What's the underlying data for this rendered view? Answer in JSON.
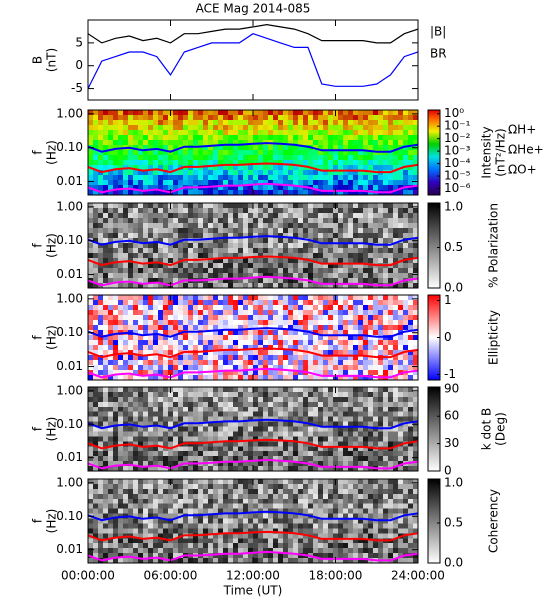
{
  "chart_data": [
    {
      "type": "line",
      "title": "ACE Mag 2014-085",
      "ylabel": [
        "B",
        "(nT)"
      ],
      "ylim": [
        -7.5,
        10
      ],
      "yticks": [
        -5,
        0,
        5
      ],
      "x": [
        0,
        1,
        2,
        3,
        4,
        5,
        6,
        7,
        8,
        9,
        10,
        11,
        12,
        13,
        14,
        15,
        16,
        17,
        18,
        19,
        20,
        21,
        22,
        23,
        24
      ],
      "series": [
        {
          "name": "|B|",
          "color": "#000000",
          "values": [
            7,
            5,
            6,
            6.5,
            5.5,
            6,
            5,
            7,
            7,
            7.5,
            8,
            8,
            8.5,
            9,
            8.5,
            8,
            7,
            5.5,
            5.5,
            5.5,
            5.5,
            5,
            5,
            7,
            8
          ]
        },
        {
          "name": "BR",
          "color": "#0000ff",
          "values": [
            -5,
            1,
            2,
            3,
            3,
            2,
            -2,
            3,
            4,
            5,
            5,
            5,
            7,
            6,
            5,
            4,
            4,
            -4,
            -4.5,
            -4.5,
            -4.5,
            -4,
            -2,
            2,
            3
          ]
        }
      ]
    },
    {
      "type": "spectrogram",
      "ylabel": [
        "f",
        "(Hz)"
      ],
      "log_y": true,
      "ylim": [
        0.004,
        1.3
      ],
      "yticks": [
        {
          "value": 1,
          "label": "1.00"
        },
        {
          "value": 0.1,
          "label": "0.10"
        },
        {
          "value": 0.01,
          "label": "0.01"
        }
      ],
      "colormap": "rainbow",
      "clabel": [
        "Intensity",
        "(nT²/Hz)"
      ],
      "clim": [
        3e-07,
        2
      ],
      "log_c": true,
      "cticks": [
        {
          "value": 1,
          "label": "10⁰"
        },
        {
          "value": 0.1,
          "label": "10⁻¹"
        },
        {
          "value": 0.01,
          "label": "10⁻²"
        },
        {
          "value": 0.001,
          "label": "10⁻³"
        },
        {
          "value": 0.0001,
          "label": "10⁻⁴"
        },
        {
          "value": 1e-05,
          "label": "10⁻⁵"
        },
        {
          "value": 1e-06,
          "label": "10⁻⁶"
        }
      ],
      "x": [
        0,
        1,
        2,
        3,
        4,
        5,
        6,
        7,
        8,
        9,
        10,
        11,
        12,
        13,
        14,
        15,
        16,
        17,
        18,
        19,
        20,
        21,
        22,
        23,
        24
      ],
      "series": [
        {
          "name": "ΩH+",
          "color": "#0000ff",
          "values": [
            0.107,
            0.076,
            0.092,
            0.099,
            0.084,
            0.092,
            0.076,
            0.107,
            0.107,
            0.114,
            0.122,
            0.122,
            0.13,
            0.137,
            0.13,
            0.122,
            0.107,
            0.084,
            0.084,
            0.084,
            0.084,
            0.076,
            0.076,
            0.107,
            0.122
          ]
        },
        {
          "name": "ΩHe+",
          "color": "#ff0000",
          "values": [
            0.027,
            0.019,
            0.023,
            0.025,
            0.021,
            0.023,
            0.019,
            0.027,
            0.027,
            0.029,
            0.031,
            0.031,
            0.033,
            0.034,
            0.033,
            0.031,
            0.027,
            0.021,
            0.021,
            0.021,
            0.021,
            0.019,
            0.019,
            0.027,
            0.031
          ]
        },
        {
          "name": "ΩO+",
          "color": "#ff00ff",
          "values": [
            0.0067,
            0.0048,
            0.0058,
            0.0062,
            0.0053,
            0.0058,
            0.0048,
            0.0067,
            0.0067,
            0.0071,
            0.0076,
            0.0076,
            0.0081,
            0.0086,
            0.0081,
            0.0076,
            0.0067,
            0.0053,
            0.0053,
            0.0053,
            0.0053,
            0.0048,
            0.0048,
            0.0067,
            0.0076
          ]
        }
      ]
    },
    {
      "type": "spectrogram",
      "ylabel": [
        "f",
        "(Hz)"
      ],
      "log_y": true,
      "ylim": [
        0.004,
        1.3
      ],
      "yticks": [
        {
          "value": 1,
          "label": "1.00"
        },
        {
          "value": 0.1,
          "label": "0.10"
        },
        {
          "value": 0.01,
          "label": "0.01"
        }
      ],
      "colormap": "gray",
      "clabel": [
        "% Polarization"
      ],
      "clim": [
        0,
        1.05
      ],
      "cticks": [
        {
          "value": 0,
          "label": "0.0"
        },
        {
          "value": 0.5,
          "label": "0.5"
        },
        {
          "value": 1,
          "label": "1.0"
        }
      ]
    },
    {
      "type": "spectrogram",
      "ylabel": [
        "f",
        "(Hz)"
      ],
      "log_y": true,
      "ylim": [
        0.004,
        1.3
      ],
      "yticks": [
        {
          "value": 1,
          "label": "1.00"
        },
        {
          "value": 0.1,
          "label": "0.10"
        },
        {
          "value": 0.01,
          "label": "0.01"
        }
      ],
      "colormap": "bwr",
      "clabel": [
        "Ellipticity"
      ],
      "clim": [
        -1.15,
        1.15
      ],
      "cticks": [
        -1,
        0,
        1
      ]
    },
    {
      "type": "spectrogram",
      "ylabel": [
        "f",
        "(Hz)"
      ],
      "log_y": true,
      "ylim": [
        0.004,
        1.3
      ],
      "yticks": [
        {
          "value": 1,
          "label": "1.00"
        },
        {
          "value": 0.1,
          "label": "0.10"
        },
        {
          "value": 0.01,
          "label": "0.01"
        }
      ],
      "colormap": "gray",
      "clabel": [
        "k dot B",
        "(Deg)"
      ],
      "clim": [
        0,
        92
      ],
      "cticks": [
        0,
        30,
        60,
        90
      ]
    },
    {
      "type": "spectrogram",
      "ylabel": [
        "f",
        "(Hz)"
      ],
      "log_y": true,
      "ylim": [
        0.004,
        1.3
      ],
      "yticks": [
        {
          "value": 1,
          "label": "1.00"
        },
        {
          "value": 0.1,
          "label": "0.10"
        },
        {
          "value": 0.01,
          "label": "0.01"
        }
      ],
      "colormap": "gray",
      "clabel": [
        "Coherency"
      ],
      "clim": [
        0,
        1.05
      ],
      "cticks": [
        {
          "value": 0,
          "label": "0.0"
        },
        {
          "value": 0.5,
          "label": "0.5"
        },
        {
          "value": 1,
          "label": "1.0"
        }
      ],
      "xlim": [
        0,
        24
      ],
      "xlabel": "Time (UT)",
      "xticks": [
        {
          "value": 0,
          "label": "00:00:00"
        },
        {
          "value": 6,
          "label": "06:00:00"
        },
        {
          "value": 12,
          "label": "12:00:00"
        },
        {
          "value": 18,
          "label": "18:00:00"
        },
        {
          "value": 24,
          "label": "24:00:00"
        }
      ]
    }
  ]
}
